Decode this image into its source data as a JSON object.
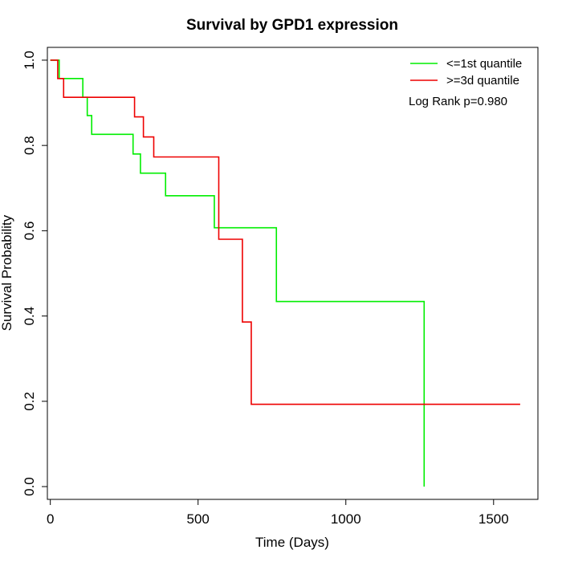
{
  "chart_data": {
    "type": "line",
    "title": "Survival by GPD1 expression",
    "xlabel": "Time (Days)",
    "ylabel": "Survival Probability",
    "xlim": [
      -10,
      1650
    ],
    "ylim": [
      -0.03,
      1.03
    ],
    "x_ticks": [
      0,
      500,
      1000,
      1500
    ],
    "y_ticks": [
      0.0,
      0.2,
      0.4,
      0.6,
      0.8,
      1.0
    ],
    "x_tick_labels": [
      "0",
      "500",
      "1000",
      "1500"
    ],
    "y_tick_labels": [
      "0.0",
      "0.2",
      "0.4",
      "0.6",
      "0.8",
      "1.0"
    ],
    "grid": false,
    "legend_position": "top-right",
    "annotation": "Log Rank p=0.980",
    "series": [
      {
        "name": "<=1st quantile",
        "color": "#00ee00",
        "step_x": [
          0,
          30,
          110,
          125,
          140,
          280,
          305,
          390,
          555,
          765,
          1265
        ],
        "step_y": [
          1.0,
          0.957,
          0.913,
          0.87,
          0.826,
          0.78,
          0.735,
          0.682,
          0.607,
          0.434,
          0.0
        ]
      },
      {
        "name": ">=3d quantile",
        "color": "#ee0000",
        "step_x": [
          0,
          25,
          45,
          285,
          315,
          350,
          570,
          650,
          680,
          1590
        ],
        "step_y": [
          1.0,
          0.957,
          0.913,
          0.867,
          0.82,
          0.773,
          0.58,
          0.386,
          0.193,
          0.193
        ]
      }
    ]
  }
}
